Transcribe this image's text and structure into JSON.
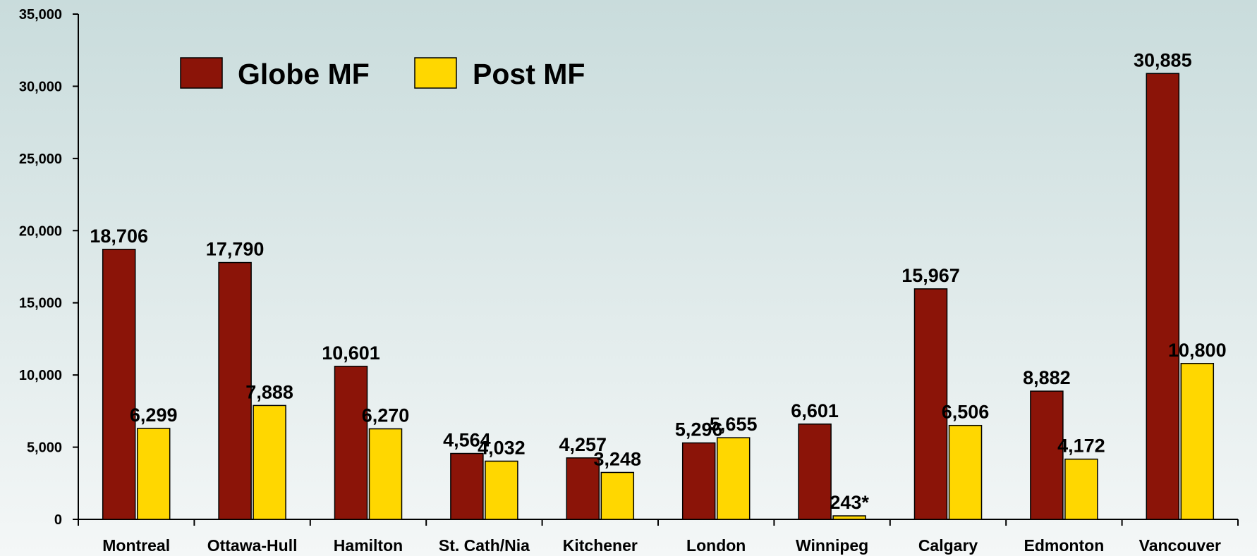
{
  "chart_data": {
    "type": "bar",
    "categories": [
      "Montreal",
      "Ottawa-Hull",
      "Hamilton",
      "St. Cath/Nia",
      "Kitchener",
      "London",
      "Winnipeg",
      "Calgary",
      "Edmonton",
      "Vancouver"
    ],
    "series": [
      {
        "name": "Globe MF",
        "color": "#8B1408",
        "values": [
          18706,
          17790,
          10601,
          4564,
          4257,
          5296,
          6601,
          15967,
          8882,
          30885
        ],
        "labels": [
          "18,706",
          "17,790",
          "10,601",
          "4,564",
          "4,257",
          "5,296",
          "6,601",
          "15,967",
          "8,882",
          "30,885"
        ]
      },
      {
        "name": "Post MF",
        "color": "#FFD700",
        "values": [
          6299,
          7888,
          6270,
          4032,
          3248,
          5655,
          243,
          6506,
          4172,
          10800
        ],
        "labels": [
          "6,299",
          "7,888",
          "6,270",
          "4,032",
          "3,248",
          "5,655",
          "243*",
          "6,506",
          "4,172",
          "10,800"
        ]
      }
    ],
    "yticks": [
      "0",
      "5,000",
      "10,000",
      "15,000",
      "20,000",
      "25,000",
      "30,000",
      "35,000"
    ],
    "ylim": [
      0,
      35000
    ],
    "grid": false,
    "legend_position": "top-left",
    "background": "gradient teal-gray to white"
  }
}
